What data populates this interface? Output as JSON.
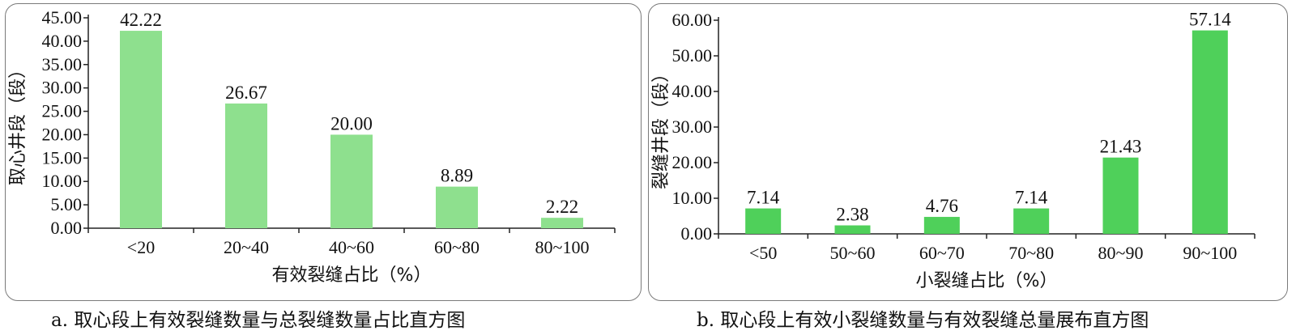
{
  "chart_data": [
    {
      "type": "bar",
      "categories": [
        "<20",
        "20~40",
        "40~60",
        "60~80",
        "80~100"
      ],
      "values": [
        42.22,
        26.67,
        20.0,
        8.89,
        2.22
      ],
      "value_labels": [
        "42.22",
        "26.67",
        "20.00",
        "8.89",
        "2.22"
      ],
      "xlabel": "有效裂缝占比（%）",
      "ylabel": "取心井段（段）",
      "ylim": [
        0,
        45
      ],
      "yticks": [
        "0.00",
        "5.00",
        "10.00",
        "15.00",
        "20.00",
        "25.00",
        "30.00",
        "35.00",
        "40.00",
        "45.00"
      ],
      "ytick_values": [
        0,
        5,
        10,
        15,
        20,
        25,
        30,
        35,
        40,
        45
      ],
      "bar_color": "#8ee08e",
      "grid": false,
      "caption": "a. 取心段上有效裂缝数量与总裂缝数量占比直方图"
    },
    {
      "type": "bar",
      "categories": [
        "<50",
        "50~60",
        "60~70",
        "70~80",
        "80~90",
        "90~100"
      ],
      "values": [
        7.14,
        2.38,
        4.76,
        7.14,
        21.43,
        57.14
      ],
      "value_labels": [
        "7.14",
        "2.38",
        "4.76",
        "7.14",
        "21.43",
        "57.14"
      ],
      "xlabel": "小裂缝占比（%）",
      "ylabel": "裂缝井段（段）",
      "ylim": [
        0,
        60
      ],
      "yticks": [
        "0.00",
        "10.00",
        "20.00",
        "30.00",
        "40.00",
        "50.00",
        "60.00"
      ],
      "ytick_values": [
        0,
        10,
        20,
        30,
        40,
        50,
        60
      ],
      "bar_color": "#4fd05a",
      "grid": false,
      "caption": "b. 取心段上有效小裂缝数量与有效裂缝总量展布直方图"
    }
  ]
}
